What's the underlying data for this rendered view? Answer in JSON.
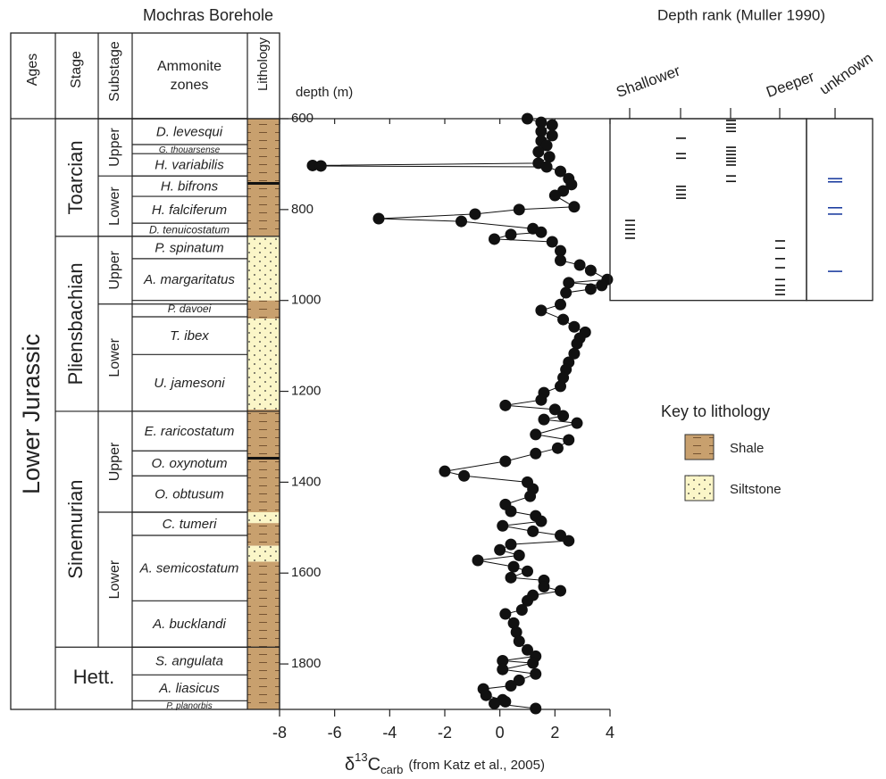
{
  "chart_data": {
    "type": "scatter-line",
    "y_label": "depth (m)",
    "x_label": {
      "delta": "δ",
      "mass": "13",
      "element": "C",
      "subscript": "carb",
      "note": "(from Katz et al., 2005)"
    },
    "xlim": [
      -8,
      4
    ],
    "xticks": [
      -8,
      -6,
      -4,
      -2,
      0,
      2,
      4
    ],
    "ylim": [
      600,
      1900
    ],
    "yticks": [
      600,
      800,
      1000,
      1200,
      1400,
      1600,
      1800
    ],
    "y_inverted": true,
    "color": "#111111",
    "x": [
      1.0,
      1.5,
      1.9,
      1.5,
      1.9,
      1.5,
      1.7,
      1.4,
      1.8,
      1.4,
      -6.8,
      -6.5,
      1.7,
      2.2,
      2.5,
      2.6,
      2.3,
      2.0,
      2.7,
      0.7,
      -0.9,
      -4.4,
      -1.4,
      1.2,
      1.5,
      0.4,
      -0.2,
      1.9,
      2.2,
      2.2,
      2.9,
      3.3,
      3.9,
      2.5,
      3.7,
      3.3,
      2.4,
      2.2,
      1.5,
      2.3,
      2.7,
      3.1,
      2.9,
      2.8,
      2.7,
      2.5,
      2.4,
      2.3,
      2.2,
      1.6,
      1.5,
      0.2,
      2.0,
      2.3,
      1.6,
      2.8,
      1.3,
      2.5,
      2.1,
      1.3,
      0.2,
      -2.0,
      -1.3,
      1.0,
      1.2,
      1.1,
      0.2,
      0.4,
      1.3,
      1.5,
      0.1,
      1.2,
      2.2,
      2.5,
      0.4,
      0.0,
      0.7,
      -0.8,
      0.5,
      1.0,
      0.4,
      1.6,
      1.6,
      2.2,
      1.2,
      1.0,
      0.8,
      0.2,
      0.5,
      0.6,
      0.7,
      1.0,
      1.3,
      0.1,
      1.2,
      0.1,
      1.3,
      0.7,
      0.4,
      -0.6,
      -0.5,
      0.1,
      0.2,
      -0.2,
      1.3
    ],
    "y": [
      600,
      608,
      614,
      628,
      637,
      649,
      659,
      673,
      684,
      698,
      703,
      704,
      706,
      716,
      732,
      745,
      759,
      769,
      794,
      800,
      810,
      820,
      826,
      842,
      850,
      855,
      865,
      871,
      891,
      912,
      922,
      934,
      954,
      961,
      967,
      975,
      983,
      1009,
      1022,
      1042,
      1058,
      1070,
      1083,
      1095,
      1117,
      1136,
      1152,
      1170,
      1189,
      1203,
      1219,
      1231,
      1240,
      1254,
      1262,
      1270,
      1295,
      1307,
      1325,
      1337,
      1354,
      1376,
      1386,
      1400,
      1415,
      1431,
      1449,
      1464,
      1474,
      1486,
      1496,
      1508,
      1517,
      1529,
      1537,
      1549,
      1561,
      1572,
      1586,
      1596,
      1610,
      1616,
      1630,
      1639,
      1649,
      1661,
      1681,
      1690,
      1710,
      1730,
      1750,
      1769,
      1783,
      1793,
      1798,
      1812,
      1822,
      1836,
      1848,
      1855,
      1869,
      1879,
      1883,
      1887,
      1898
    ]
  },
  "stratigraphy": {
    "title": "Mochras Borehole",
    "headers": {
      "ages": "Ages",
      "stage": "Stage",
      "substage": "Substage",
      "zones": [
        "Ammonite",
        "zones"
      ],
      "lithology": "Lithology"
    },
    "ages": [
      {
        "name": "Lower Jurassic",
        "top": 600,
        "base": 1900
      }
    ],
    "stages": [
      {
        "name": "Toarcian",
        "top": 600,
        "base": 859
      },
      {
        "name": "Pliensbachian",
        "top": 859,
        "base": 1244
      },
      {
        "name": "Sinemurian",
        "top": 1244,
        "base": 1763
      },
      {
        "name": "Hett.",
        "top": 1763,
        "base": 1900
      }
    ],
    "substages": [
      {
        "name": "Upper",
        "top": 600,
        "base": 726
      },
      {
        "name": "Lower",
        "top": 726,
        "base": 859
      },
      {
        "name": "Upper",
        "top": 859,
        "base": 1008
      },
      {
        "name": "Lower",
        "top": 1008,
        "base": 1244
      },
      {
        "name": "Upper",
        "top": 1244,
        "base": 1466
      },
      {
        "name": "Lower",
        "top": 1466,
        "base": 1763
      }
    ],
    "zones": [
      {
        "name": "D. levesqui",
        "top": 600,
        "base": 657
      },
      {
        "name": "G. thouarsense",
        "top": 657,
        "base": 677
      },
      {
        "name": "H. variabilis",
        "top": 677,
        "base": 726
      },
      {
        "name": "H. bifrons",
        "top": 726,
        "base": 771
      },
      {
        "name": "H. falciferum",
        "top": 771,
        "base": 830
      },
      {
        "name": "D. tenuicostatum",
        "top": 830,
        "base": 859
      },
      {
        "name": "P. spinatum",
        "top": 859,
        "base": 908
      },
      {
        "name": "A. margaritatus",
        "top": 908,
        "base": 1000
      },
      {
        "name": "P. davoei",
        "top": 1000,
        "base": 1036
      },
      {
        "name": "T. ibex",
        "top": 1036,
        "base": 1119
      },
      {
        "name": "U. jamesoni",
        "top": 1119,
        "base": 1244
      },
      {
        "name": "E. raricostatum",
        "top": 1244,
        "base": 1331
      },
      {
        "name": "O. oxynotum",
        "top": 1331,
        "base": 1386
      },
      {
        "name": "O. obtusum",
        "top": 1386,
        "base": 1466
      },
      {
        "name": "C. tumeri",
        "top": 1466,
        "base": 1517
      },
      {
        "name": "A. semicostatum",
        "top": 1517,
        "base": 1661
      },
      {
        "name": "A. bucklandi",
        "top": 1661,
        "base": 1763
      },
      {
        "name": "S. angulata",
        "top": 1763,
        "base": 1824
      },
      {
        "name": "A. liasicus",
        "top": 1824,
        "base": 1881
      },
      {
        "name": "P. planorbis",
        "top": 1881,
        "base": 1900
      }
    ],
    "lithology": [
      {
        "top": 600,
        "base": 859,
        "key": 0
      },
      {
        "top": 859,
        "base": 1000,
        "key": 1
      },
      {
        "top": 1000,
        "base": 1040,
        "key": 0
      },
      {
        "top": 1040,
        "base": 1240,
        "key": 1
      },
      {
        "top": 1240,
        "base": 1466,
        "key": 0
      },
      {
        "top": 1466,
        "base": 1490,
        "key": 1
      },
      {
        "top": 1490,
        "base": 1540,
        "key": 0
      },
      {
        "top": 1540,
        "base": 1575,
        "key": 1
      },
      {
        "top": 1575,
        "base": 1900,
        "key": 0
      }
    ]
  },
  "lithology_key": {
    "title": "Key to lithology",
    "items": [
      {
        "name": "Shale",
        "color": "#c8a06e"
      },
      {
        "name": "Siltstone",
        "color": "#fbf6c8"
      }
    ]
  },
  "depth_rank": {
    "type": "strip",
    "title": "Depth rank (Muller 1990)",
    "ylim": [
      600,
      1000
    ],
    "columns": [
      {
        "label": "Shallower",
        "depths": [
          824,
          834,
          844,
          853,
          863
        ]
      },
      {
        "label": null,
        "depths": [
          643,
          677,
          687,
          749,
          757,
          767,
          775
        ]
      },
      {
        "label": null,
        "depths": [
          604,
          612,
          620,
          628,
          663,
          671,
          679,
          687,
          694,
          702,
          726,
          738
        ]
      },
      {
        "label": "Deeper",
        "depths": [
          869,
          885,
          908,
          928,
          954,
          967,
          977,
          987
        ]
      }
    ],
    "unknown": {
      "label": "unknown",
      "color": "#1f3fa0",
      "depths": [
        732,
        739,
        796,
        810,
        936
      ]
    }
  }
}
